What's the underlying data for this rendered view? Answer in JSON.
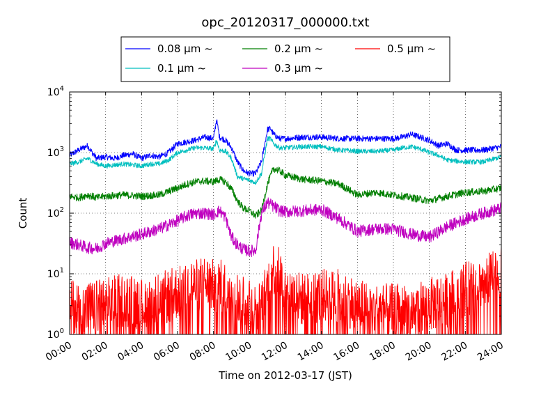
{
  "chart_data": {
    "type": "line",
    "title": "opc_20120317_000000.txt",
    "xlabel": "Time on 2012-03-17 (JST)",
    "ylabel": "Count",
    "yscale": "log",
    "ylim": [
      1,
      10000
    ],
    "xlim": [
      "00:00",
      "24:00"
    ],
    "grid": true,
    "legend_position": "top-center",
    "x_ticks": [
      "00:00",
      "02:00",
      "04:00",
      "06:00",
      "08:00",
      "10:00",
      "12:00",
      "14:00",
      "16:00",
      "18:00",
      "20:00",
      "22:00",
      "24:00"
    ],
    "y_ticks": [
      {
        "base": "10",
        "exp": "0"
      },
      {
        "base": "10",
        "exp": "1"
      },
      {
        "base": "10",
        "exp": "2"
      },
      {
        "base": "10",
        "exp": "3"
      },
      {
        "base": "10",
        "exp": "4"
      }
    ],
    "series": [
      {
        "name": "0.08 μm ~",
        "color": "#0000ff",
        "x": [
          "00:00",
          "00:30",
          "01:00",
          "01:15",
          "01:30",
          "02:00",
          "02:30",
          "03:00",
          "03:30",
          "04:00",
          "04:30",
          "05:00",
          "05:30",
          "06:00",
          "06:30",
          "07:00",
          "07:30",
          "08:00",
          "08:10",
          "08:20",
          "08:40",
          "09:00",
          "09:20",
          "09:40",
          "10:00",
          "10:20",
          "10:40",
          "11:00",
          "11:10",
          "11:20",
          "11:40",
          "12:00",
          "13:00",
          "14:00",
          "15:00",
          "16:00",
          "17:00",
          "18:00",
          "18:30",
          "19:00",
          "19:30",
          "20:00",
          "20:30",
          "21:00",
          "21:30",
          "22:00",
          "23:00",
          "24:00"
        ],
        "y": [
          900,
          1100,
          1300,
          1000,
          800,
          850,
          800,
          900,
          950,
          800,
          900,
          850,
          1000,
          1400,
          1500,
          1600,
          1800,
          1700,
          3500,
          1800,
          1600,
          1200,
          700,
          500,
          450,
          450,
          700,
          2400,
          2500,
          2000,
          1700,
          1700,
          1800,
          1800,
          1700,
          1700,
          1700,
          1700,
          1800,
          2000,
          1800,
          1600,
          1300,
          1400,
          1100,
          1100,
          1100,
          1250
        ]
      },
      {
        "name": "0.1 μm ~",
        "color": "#00bfbf",
        "x": [
          "00:00",
          "00:30",
          "01:00",
          "01:30",
          "02:00",
          "03:00",
          "04:00",
          "04:30",
          "05:00",
          "05:30",
          "06:00",
          "06:30",
          "07:00",
          "07:30",
          "08:00",
          "08:10",
          "08:20",
          "08:40",
          "09:00",
          "09:20",
          "09:40",
          "10:00",
          "10:20",
          "10:40",
          "11:00",
          "11:10",
          "11:20",
          "11:40",
          "12:00",
          "13:00",
          "14:00",
          "15:00",
          "16:00",
          "17:00",
          "18:00",
          "18:30",
          "19:00",
          "19:30",
          "20:00",
          "20:30",
          "21:00",
          "22:00",
          "23:00",
          "24:00"
        ],
        "y": [
          650,
          700,
          800,
          650,
          600,
          650,
          600,
          650,
          650,
          750,
          1000,
          1100,
          1200,
          1200,
          1150,
          1600,
          1100,
          1050,
          800,
          400,
          370,
          350,
          320,
          450,
          1700,
          1700,
          1400,
          1200,
          1200,
          1250,
          1250,
          1100,
          1050,
          1050,
          1100,
          1200,
          1250,
          1150,
          1000,
          900,
          750,
          700,
          700,
          850
        ]
      },
      {
        "name": "0.2 μm ~",
        "color": "#007f00",
        "x": [
          "00:00",
          "00:30",
          "01:00",
          "01:30",
          "02:00",
          "03:00",
          "04:00",
          "05:00",
          "06:00",
          "06:30",
          "07:00",
          "07:30",
          "08:00",
          "08:20",
          "08:40",
          "09:00",
          "09:20",
          "09:40",
          "10:00",
          "10:20",
          "10:40",
          "11:00",
          "11:20",
          "11:40",
          "12:00",
          "13:00",
          "14:00",
          "15:00",
          "16:00",
          "17:00",
          "18:00",
          "19:00",
          "20:00",
          "21:00",
          "22:00",
          "23:00",
          "24:00"
        ],
        "y": [
          190,
          180,
          200,
          180,
          190,
          200,
          190,
          200,
          260,
          300,
          330,
          340,
          330,
          360,
          330,
          250,
          160,
          120,
          110,
          90,
          110,
          300,
          550,
          500,
          420,
          360,
          340,
          300,
          200,
          220,
          200,
          180,
          160,
          190,
          220,
          230,
          260
        ]
      },
      {
        "name": "0.3 μm ~",
        "color": "#bf00bf",
        "x": [
          "00:00",
          "00:30",
          "01:00",
          "01:30",
          "02:00",
          "03:00",
          "04:00",
          "05:00",
          "06:00",
          "06:30",
          "07:00",
          "07:30",
          "08:00",
          "08:20",
          "08:40",
          "09:00",
          "09:20",
          "09:40",
          "10:00",
          "10:20",
          "10:40",
          "11:00",
          "11:20",
          "11:40",
          "12:00",
          "13:00",
          "14:00",
          "15:00",
          "16:00",
          "17:00",
          "18:00",
          "19:00",
          "20:00",
          "21:00",
          "22:00",
          "23:00",
          "24:00"
        ],
        "y": [
          33,
          30,
          27,
          26,
          32,
          38,
          45,
          55,
          75,
          90,
          100,
          100,
          95,
          110,
          85,
          40,
          30,
          25,
          24,
          24,
          100,
          150,
          130,
          110,
          105,
          110,
          115,
          80,
          50,
          55,
          55,
          45,
          40,
          60,
          80,
          100,
          120
        ]
      },
      {
        "name": "0.5 μm ~",
        "color": "#ff0000",
        "x": [
          "00:00",
          "01:00",
          "02:00",
          "03:00",
          "04:00",
          "05:00",
          "06:00",
          "06:30",
          "07:00",
          "07:30",
          "08:00",
          "08:30",
          "09:00",
          "09:30",
          "10:00",
          "10:30",
          "11:00",
          "11:20",
          "11:40",
          "12:00",
          "13:00",
          "14:00",
          "15:00",
          "16:00",
          "17:00",
          "18:00",
          "19:00",
          "20:00",
          "21:00",
          "22:00",
          "23:00",
          "24:00"
        ],
        "y": [
          2.5,
          2.2,
          2.5,
          3,
          2.5,
          3,
          4,
          5,
          5,
          6,
          5,
          5,
          4,
          3,
          2.5,
          2,
          5,
          10,
          8,
          4,
          3,
          3.5,
          3.5,
          2.5,
          2,
          2,
          2,
          2.5,
          3,
          4.5,
          6,
          8
        ]
      }
    ]
  }
}
